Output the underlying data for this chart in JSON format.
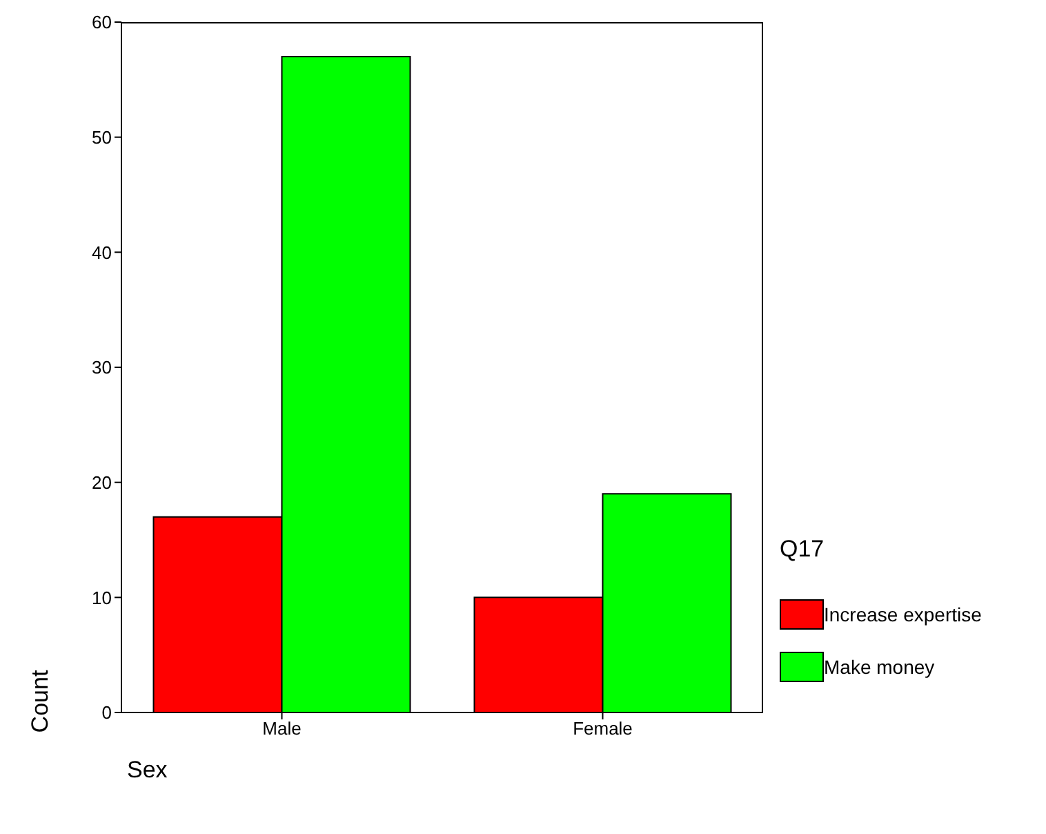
{
  "chart_data": {
    "type": "bar",
    "xlabel": "Sex",
    "ylabel": "Count",
    "legend_title": "Q17",
    "categories": [
      "Male",
      "Female"
    ],
    "series": [
      {
        "name": "Increase expertise",
        "color": "#ff0000",
        "values": [
          17,
          10
        ]
      },
      {
        "name": "Make money",
        "color": "#00ff00",
        "values": [
          57,
          19
        ]
      }
    ],
    "ylim": [
      0,
      60
    ],
    "yticks": [
      0,
      10,
      20,
      30,
      40,
      50,
      60
    ],
    "grid": false,
    "legend": "right"
  }
}
